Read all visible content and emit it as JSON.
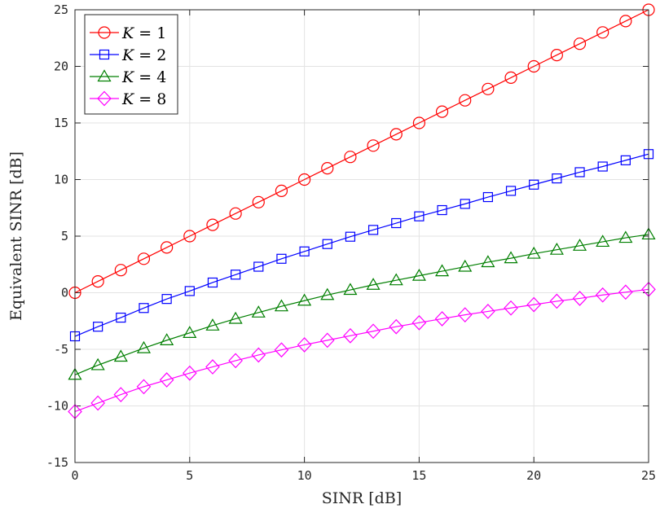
{
  "chart_data": {
    "type": "line",
    "xlabel": "SINR [dB]",
    "ylabel": "Equivalent SINR [dB]",
    "xlim": [
      0,
      25
    ],
    "ylim": [
      -15,
      25
    ],
    "xticks": [
      0,
      5,
      10,
      15,
      20,
      25
    ],
    "yticks": [
      -15,
      -10,
      -5,
      0,
      5,
      10,
      15,
      20,
      25
    ],
    "xtick_labels": [
      "0",
      "5",
      "10",
      "15",
      "20",
      "25"
    ],
    "ytick_labels": [
      "-15",
      "-10",
      "-5",
      "0",
      "5",
      "10",
      "15",
      "20",
      "25"
    ],
    "grid": true,
    "legend_position": "top-left",
    "x": [
      0,
      1,
      2,
      3,
      4,
      5,
      6,
      7,
      8,
      9,
      10,
      11,
      12,
      13,
      14,
      15,
      16,
      17,
      18,
      19,
      20,
      21,
      22,
      23,
      24,
      25
    ],
    "series": [
      {
        "name": "K = 1",
        "name_var": "K",
        "name_eq": " = 1",
        "color": "#ff0000",
        "marker": "circle",
        "values": [
          0,
          1,
          2,
          3,
          4,
          5,
          6,
          7,
          8,
          9,
          10,
          11,
          12,
          13,
          14,
          15,
          16,
          17,
          18,
          19,
          20,
          21,
          22,
          23,
          24,
          25
        ]
      },
      {
        "name": "K = 2",
        "name_var": "K",
        "name_eq": " = 2",
        "color": "#0000ff",
        "marker": "square",
        "values": [
          -3.85,
          -3.0,
          -2.2,
          -1.35,
          -0.55,
          0.15,
          0.9,
          1.6,
          2.3,
          3.0,
          3.65,
          4.3,
          4.95,
          5.55,
          6.15,
          6.75,
          7.3,
          7.85,
          8.45,
          9.0,
          9.55,
          10.1,
          10.65,
          11.15,
          11.7,
          12.25
        ]
      },
      {
        "name": "K = 4",
        "name_var": "K",
        "name_eq": " = 4",
        "color": "#007f00",
        "marker": "triangle",
        "values": [
          -7.25,
          -6.4,
          -5.65,
          -4.9,
          -4.2,
          -3.55,
          -2.9,
          -2.3,
          -1.75,
          -1.2,
          -0.7,
          -0.2,
          0.25,
          0.7,
          1.1,
          1.5,
          1.9,
          2.3,
          2.7,
          3.05,
          3.45,
          3.8,
          4.15,
          4.5,
          4.85,
          5.15
        ]
      },
      {
        "name": "K = 8",
        "name_var": "K",
        "name_eq": " = 8",
        "color": "#ff00ff",
        "marker": "diamond",
        "values": [
          -10.5,
          -9.75,
          -9.0,
          -8.3,
          -7.7,
          -7.1,
          -6.55,
          -6.0,
          -5.5,
          -5.05,
          -4.6,
          -4.2,
          -3.8,
          -3.4,
          -3.0,
          -2.65,
          -2.3,
          -1.95,
          -1.65,
          -1.35,
          -1.05,
          -0.75,
          -0.5,
          -0.2,
          0.05,
          0.3
        ]
      }
    ]
  }
}
